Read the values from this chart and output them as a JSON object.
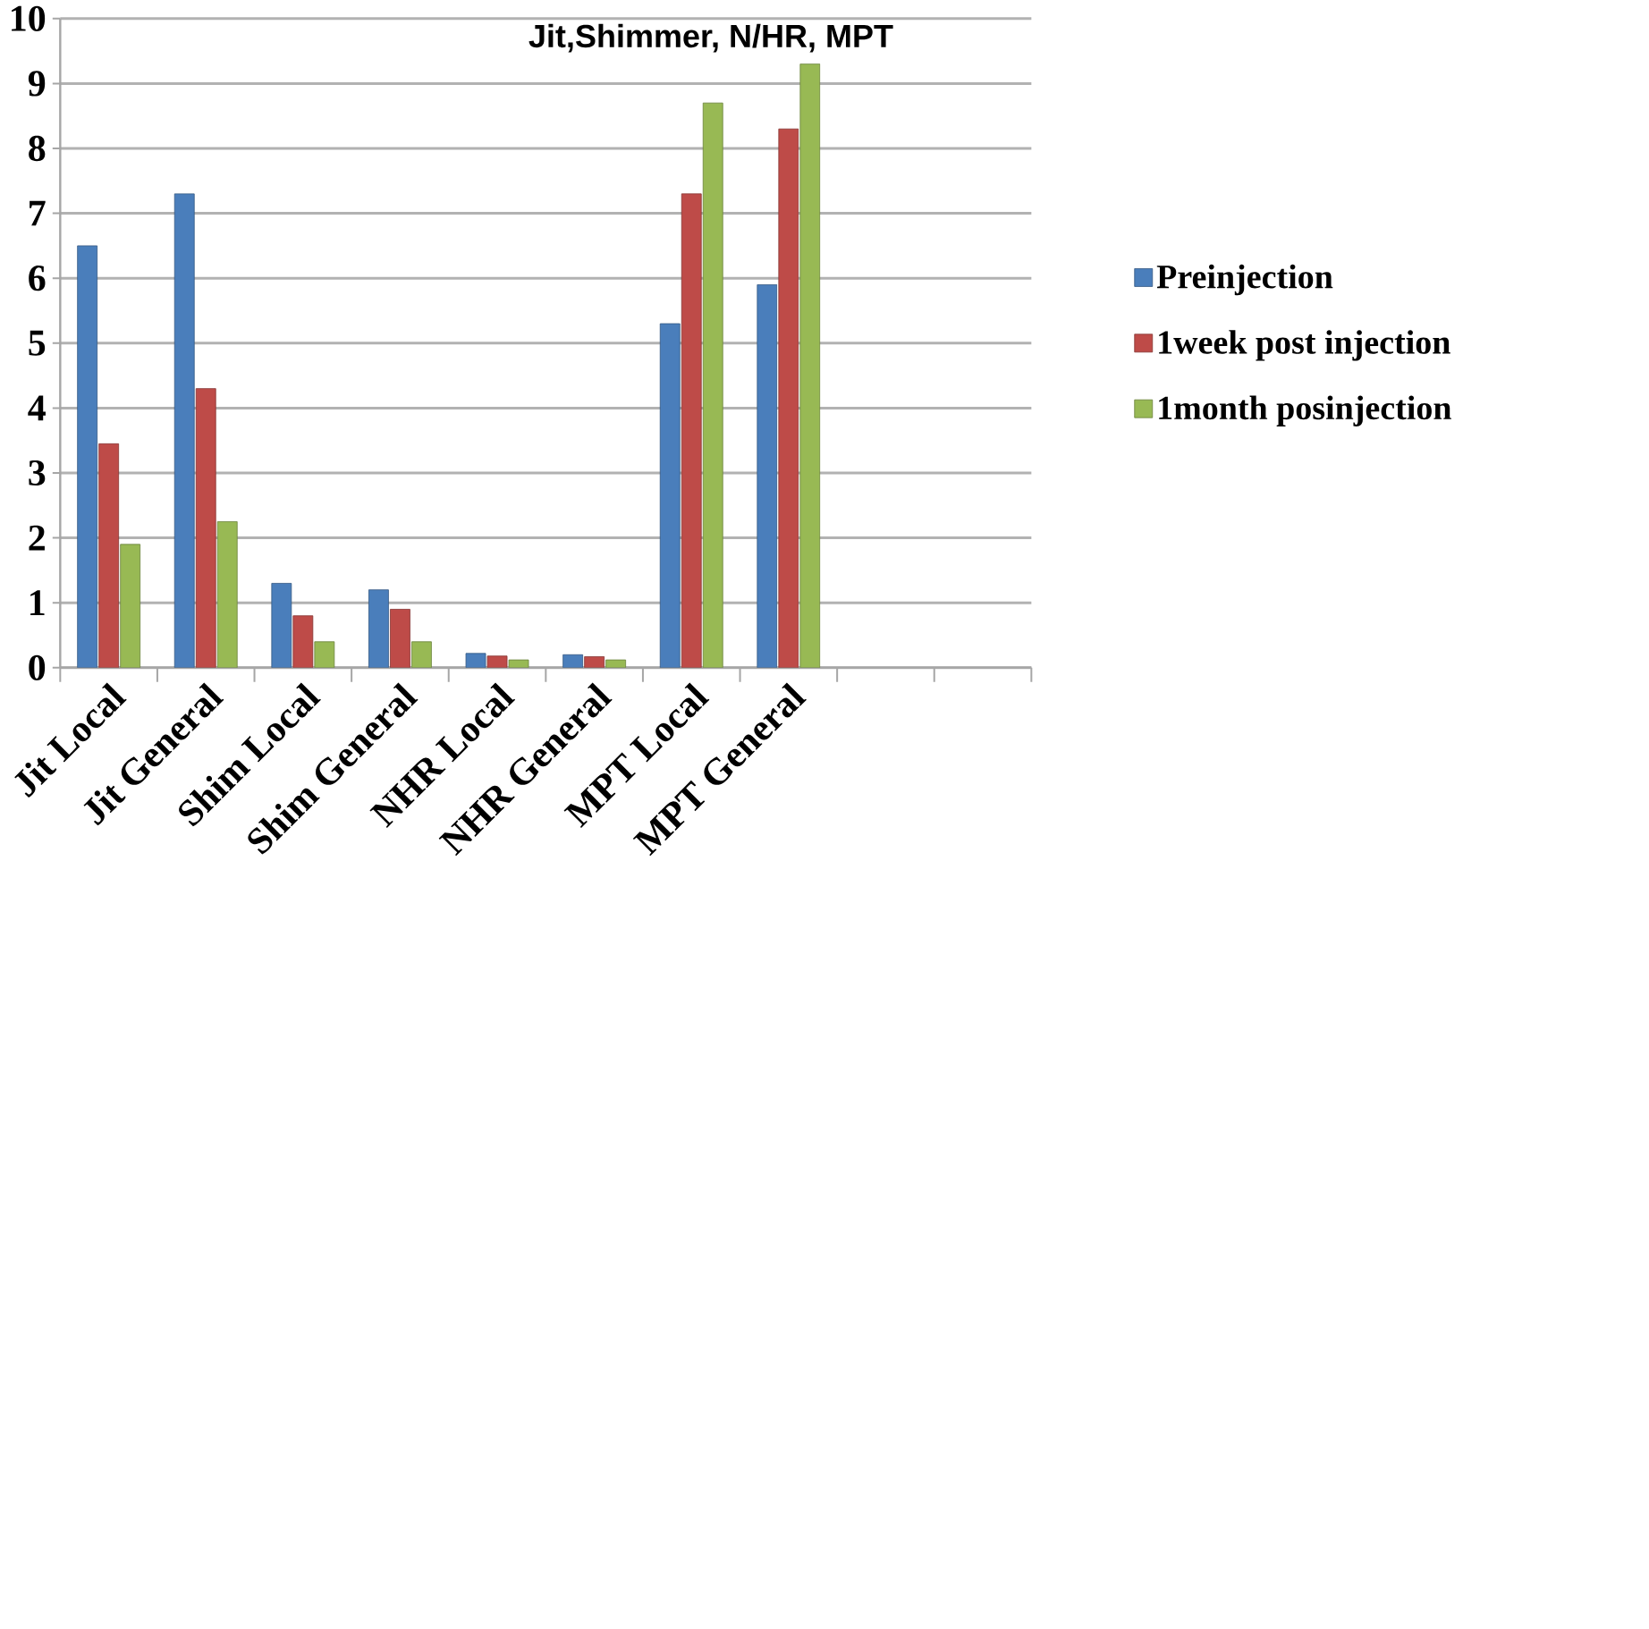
{
  "chart_data": {
    "type": "bar",
    "title": "Jit,Shimmer, N/HR, MPT",
    "categories": [
      "Jit Local",
      "Jit General",
      "Shim Local",
      "Shim General",
      "NHR Local",
      "NHR General",
      "MPT Local",
      "MPT General",
      null,
      null
    ],
    "series": [
      {
        "name": "Preinjection",
        "color": "#4a7ebb",
        "values": [
          6.5,
          7.3,
          1.3,
          1.2,
          0.22,
          0.2,
          5.3,
          5.9,
          null,
          null
        ]
      },
      {
        "name": "1week post injection",
        "color": "#be4b48",
        "values": [
          3.45,
          4.3,
          0.8,
          0.9,
          0.18,
          0.17,
          7.3,
          8.3,
          null,
          null
        ]
      },
      {
        "name": "1month posinjection",
        "color": "#98b954",
        "values": [
          1.9,
          2.25,
          0.4,
          0.4,
          0.12,
          0.12,
          8.7,
          9.3,
          null,
          null
        ]
      }
    ],
    "ylim": [
      0,
      10
    ],
    "yticks": [
      0,
      1,
      2,
      3,
      4,
      5,
      6,
      7,
      8,
      9,
      10
    ],
    "grid": "y",
    "legend": "right"
  }
}
